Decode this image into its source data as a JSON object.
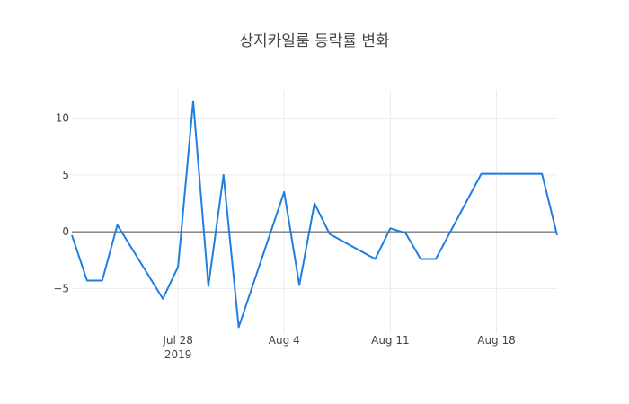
{
  "chart_data": {
    "type": "line",
    "title": "상지카일룸 등락률 변화",
    "xlabel": "",
    "ylabel": "",
    "x_axis_type": "date",
    "xlim": [
      "2019-07-21",
      "2019-08-22"
    ],
    "ylim": [
      -9,
      12.5
    ],
    "x_ticks": [
      {
        "date": "2019-07-28",
        "label": "Jul 28",
        "sublabel": "2019"
      },
      {
        "date": "2019-08-04",
        "label": "Aug 4",
        "sublabel": ""
      },
      {
        "date": "2019-08-11",
        "label": "Aug 11",
        "sublabel": ""
      },
      {
        "date": "2019-08-18",
        "label": "Aug 18",
        "sublabel": ""
      }
    ],
    "y_ticks": [
      10,
      5,
      0,
      -5
    ],
    "y_tick_labels": [
      "10",
      "5",
      "0",
      "−5"
    ],
    "grid": true,
    "zero_line": true,
    "line_color": "#1f7fe0",
    "series": [
      {
        "x": [
          "2019-07-21",
          "2019-07-22",
          "2019-07-23",
          "2019-07-24",
          "2019-07-27",
          "2019-07-28",
          "2019-07-29",
          "2019-07-30",
          "2019-07-31",
          "2019-08-01",
          "2019-08-04",
          "2019-08-05",
          "2019-08-06",
          "2019-08-07",
          "2019-08-10",
          "2019-08-11",
          "2019-08-12",
          "2019-08-13",
          "2019-08-14",
          "2019-08-17",
          "2019-08-18",
          "2019-08-21",
          "2019-08-22"
        ],
        "y": [
          -0.3,
          -4.3,
          -4.3,
          0.6,
          -5.9,
          -3.1,
          11.5,
          -4.8,
          5.0,
          -8.4,
          3.5,
          -4.7,
          2.5,
          -0.2,
          -2.4,
          0.3,
          -0.1,
          -2.4,
          -2.4,
          5.1,
          5.1,
          5.1,
          -0.3
        ]
      }
    ]
  }
}
